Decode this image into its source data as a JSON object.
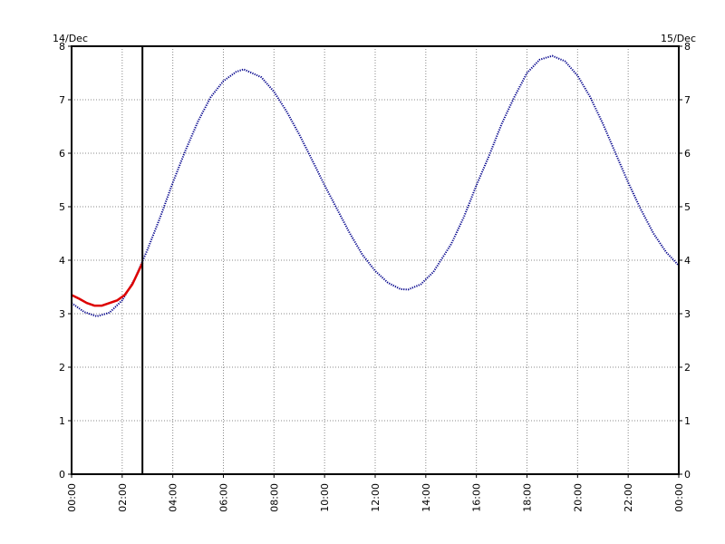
{
  "chart_data": {
    "type": "line",
    "title": "",
    "xlabel": "",
    "ylabel": "",
    "date_left": "14/Dec",
    "date_right": "15/Dec",
    "xlim": [
      0,
      24
    ],
    "ylim": [
      0,
      8
    ],
    "grid": true,
    "x_ticks": [
      0,
      2,
      4,
      6,
      8,
      10,
      12,
      14,
      16,
      18,
      20,
      22,
      24
    ],
    "x_tick_labels": [
      "00:00",
      "02:00",
      "04:00",
      "06:00",
      "08:00",
      "10:00",
      "12:00",
      "14:00",
      "16:00",
      "18:00",
      "20:00",
      "22:00",
      "00:00"
    ],
    "y_ticks": [
      0,
      1,
      2,
      3,
      4,
      5,
      6,
      7,
      8
    ],
    "y_tick_labels": [
      "0",
      "1",
      "2",
      "3",
      "4",
      "5",
      "6",
      "7",
      "8"
    ],
    "now_marker_x": 2.8,
    "series": [
      {
        "color": "#00008b",
        "style": "dotted",
        "x": [
          0,
          0.5,
          1,
          1.5,
          2,
          2.5,
          3,
          3.5,
          4,
          4.5,
          5,
          5.5,
          6,
          6.5,
          6.8,
          7.5,
          8,
          8.5,
          9,
          9.5,
          10,
          10.5,
          11,
          11.5,
          12,
          12.5,
          13,
          13.3,
          13.8,
          14.3,
          15,
          15.5,
          16,
          16.5,
          17,
          17.5,
          18,
          18.5,
          19,
          19.5,
          20,
          20.5,
          21,
          21.5,
          22,
          22.5,
          23,
          23.5,
          24
        ],
        "y": [
          3.2,
          3.03,
          2.95,
          3.02,
          3.25,
          3.65,
          4.2,
          4.8,
          5.45,
          6.05,
          6.6,
          7.05,
          7.35,
          7.52,
          7.57,
          7.42,
          7.15,
          6.78,
          6.35,
          5.88,
          5.4,
          4.95,
          4.5,
          4.1,
          3.8,
          3.58,
          3.46,
          3.45,
          3.55,
          3.78,
          4.3,
          4.8,
          5.4,
          5.95,
          6.55,
          7.05,
          7.5,
          7.75,
          7.82,
          7.72,
          7.45,
          7.05,
          6.55,
          6.0,
          5.45,
          4.95,
          4.5,
          4.15,
          3.9
        ]
      },
      {
        "color": "#dd0000",
        "style": "solid",
        "x": [
          0,
          0.3,
          0.6,
          0.9,
          1.2,
          1.5,
          1.8,
          2.1,
          2.4,
          2.6,
          2.8
        ],
        "y": [
          3.35,
          3.28,
          3.2,
          3.15,
          3.15,
          3.2,
          3.25,
          3.35,
          3.55,
          3.75,
          3.95
        ]
      }
    ]
  }
}
